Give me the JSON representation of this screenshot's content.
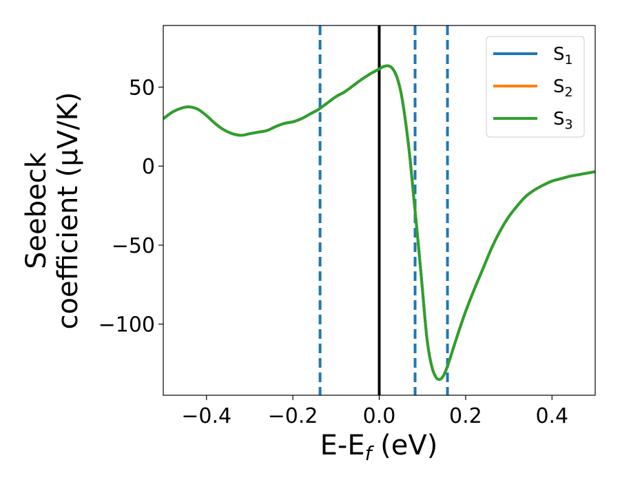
{
  "chart_data": {
    "type": "line",
    "xlabel": "E-E",
    "xlabel_sub": "f",
    "xlabel_unit": " (eV)",
    "ylabel_line1": "Seebeck",
    "ylabel_line2": "coefficient  (μV/K)",
    "xlim": [
      -0.5,
      0.5
    ],
    "ylim": [
      -145,
      89
    ],
    "xticks": [
      -0.4,
      -0.2,
      0.0,
      0.2,
      0.4
    ],
    "xtick_labels": [
      "−0.4",
      "−0.2",
      "0.0",
      "0.2",
      "0.4"
    ],
    "yticks": [
      50,
      0,
      -50,
      -100
    ],
    "ytick_labels": [
      "50",
      "0",
      "−50",
      "−100"
    ],
    "legend_position": "top-right",
    "zero_line": {
      "x": 0.0,
      "color": "#000000"
    },
    "dashed_lines": {
      "x": [
        -0.137,
        0.083,
        0.158
      ],
      "color": "#1f77b4"
    },
    "x": [
      -0.5,
      -0.48,
      -0.46,
      -0.44,
      -0.42,
      -0.4,
      -0.38,
      -0.36,
      -0.34,
      -0.32,
      -0.3,
      -0.28,
      -0.26,
      -0.24,
      -0.22,
      -0.2,
      -0.18,
      -0.16,
      -0.14,
      -0.12,
      -0.1,
      -0.08,
      -0.06,
      -0.04,
      -0.02,
      0.0,
      0.01,
      0.02,
      0.03,
      0.04,
      0.05,
      0.06,
      0.07,
      0.08,
      0.09,
      0.1,
      0.11,
      0.12,
      0.13,
      0.14,
      0.15,
      0.16,
      0.18,
      0.2,
      0.22,
      0.24,
      0.26,
      0.28,
      0.3,
      0.32,
      0.34,
      0.36,
      0.38,
      0.4,
      0.42,
      0.44,
      0.46,
      0.48,
      0.5
    ],
    "series": [
      {
        "name": "S",
        "sub": "1",
        "color": "#1f77b4",
        "values": [
          30,
          34,
          36.5,
          37.5,
          36,
          32,
          27,
          23,
          20.5,
          19.5,
          20.5,
          21.5,
          22.5,
          25,
          27,
          28,
          30,
          33,
          36,
          40,
          44,
          47,
          51,
          55,
          58.5,
          61.5,
          63,
          63.5,
          62,
          57,
          47,
          30,
          8,
          -20,
          -48,
          -78,
          -108,
          -125,
          -133,
          -135,
          -132,
          -125,
          -108,
          -92,
          -78,
          -65,
          -52,
          -41,
          -32,
          -25,
          -19,
          -15,
          -12,
          -9.5,
          -8,
          -6.5,
          -5.5,
          -4.5,
          -3.5
        ]
      },
      {
        "name": "S",
        "sub": "2",
        "color": "#ff7f0e",
        "values": [
          30,
          34,
          36.5,
          37.5,
          36,
          32,
          27,
          23,
          20.5,
          19.5,
          20.5,
          21.5,
          22.5,
          25,
          27,
          28,
          30,
          33,
          36,
          40,
          44,
          47,
          51,
          55,
          58.5,
          61.5,
          63,
          63.5,
          62,
          57,
          47,
          30,
          8,
          -20,
          -48,
          -78,
          -108,
          -125,
          -133,
          -135,
          -132,
          -125,
          -108,
          -92,
          -78,
          -65,
          -52,
          -41,
          -32,
          -25,
          -19,
          -15,
          -12,
          -9.5,
          -8,
          -6.5,
          -5.5,
          -4.5,
          -3.5
        ]
      },
      {
        "name": "S",
        "sub": "3",
        "color": "#2ca02c",
        "values": [
          30,
          34,
          36.5,
          37.5,
          36,
          32,
          27,
          23,
          20.5,
          19.5,
          20.5,
          21.5,
          22.5,
          25,
          27,
          28,
          30,
          33,
          36,
          40,
          44,
          47,
          51,
          55,
          58.5,
          61.5,
          63,
          63.5,
          62,
          57,
          47,
          30,
          8,
          -20,
          -48,
          -78,
          -108,
          -125,
          -133,
          -135,
          -132,
          -125,
          -108,
          -92,
          -78,
          -65,
          -52,
          -41,
          -32,
          -25,
          -19,
          -15,
          -12,
          -9.5,
          -8,
          -6.5,
          -5.5,
          -4.5,
          -3.5
        ]
      }
    ]
  }
}
